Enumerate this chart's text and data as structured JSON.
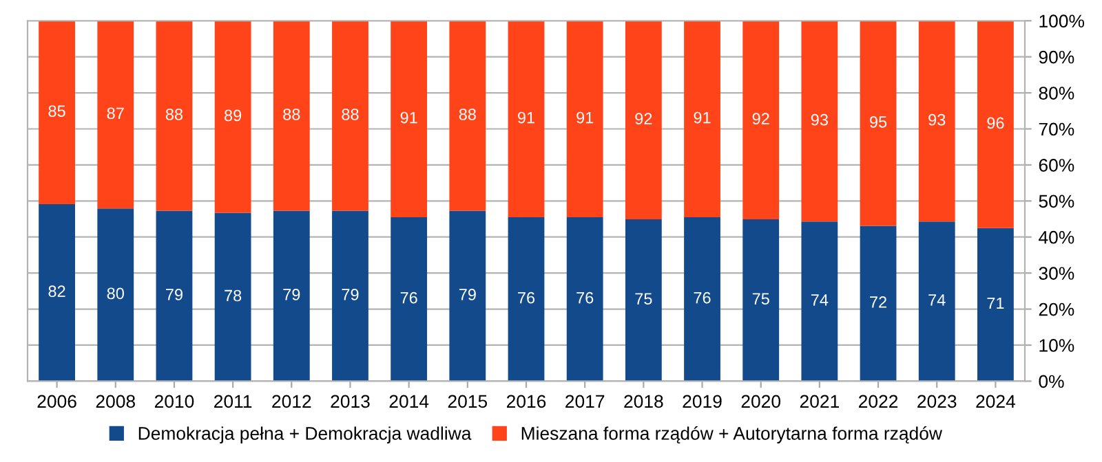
{
  "chart_data": {
    "type": "bar",
    "stacked": true,
    "categories": [
      "2006",
      "2008",
      "2010",
      "2011",
      "2012",
      "2013",
      "2014",
      "2015",
      "2016",
      "2017",
      "2018",
      "2019",
      "2020",
      "2021",
      "2022",
      "2023",
      "2024"
    ],
    "series": [
      {
        "name": "Demokracja pełna + Demokracja wadliwa",
        "color": "#134a8c",
        "values": [
          49.1,
          47.9,
          47.3,
          46.7,
          47.3,
          47.3,
          45.5,
          47.3,
          45.5,
          45.5,
          44.9,
          45.5,
          44.9,
          44.3,
          43.1,
          44.3,
          42.5
        ]
      },
      {
        "name": "Mieszana forma rządów + Autorytarna forma rządów",
        "color": "#ff4419",
        "values": [
          50.9,
          52.1,
          52.7,
          53.3,
          52.7,
          52.7,
          54.5,
          52.7,
          54.5,
          54.5,
          55.1,
          54.5,
          55.1,
          55.7,
          56.9,
          55.7,
          57.5
        ]
      }
    ],
    "annotations": [
      "82",
      "80",
      "79",
      "78",
      "79",
      "79",
      "76",
      "79",
      "76",
      "76",
      "75",
      "76",
      "75",
      "74",
      "72",
      "74",
      "71",
      "85",
      "87",
      "88",
      "89",
      "88",
      "88",
      "91",
      "88",
      "91",
      "91",
      "92",
      "91",
      "92",
      "93",
      "95",
      "93",
      "96"
    ],
    "ylim": [
      0,
      100
    ],
    "yticks": [
      {
        "value": 0,
        "label": "0%"
      },
      {
        "value": 10,
        "label": "10%"
      },
      {
        "value": 20,
        "label": "20%"
      },
      {
        "value": 30,
        "label": "30%"
      },
      {
        "value": 40,
        "label": "40%"
      },
      {
        "value": 50,
        "label": "50%"
      },
      {
        "value": 60,
        "label": "60%"
      },
      {
        "value": 70,
        "label": "70%"
      },
      {
        "value": 80,
        "label": "80%"
      },
      {
        "value": 90,
        "label": "90%"
      },
      {
        "value": 100,
        "label": "100%"
      }
    ],
    "grid": "y",
    "legend": "bottom"
  }
}
